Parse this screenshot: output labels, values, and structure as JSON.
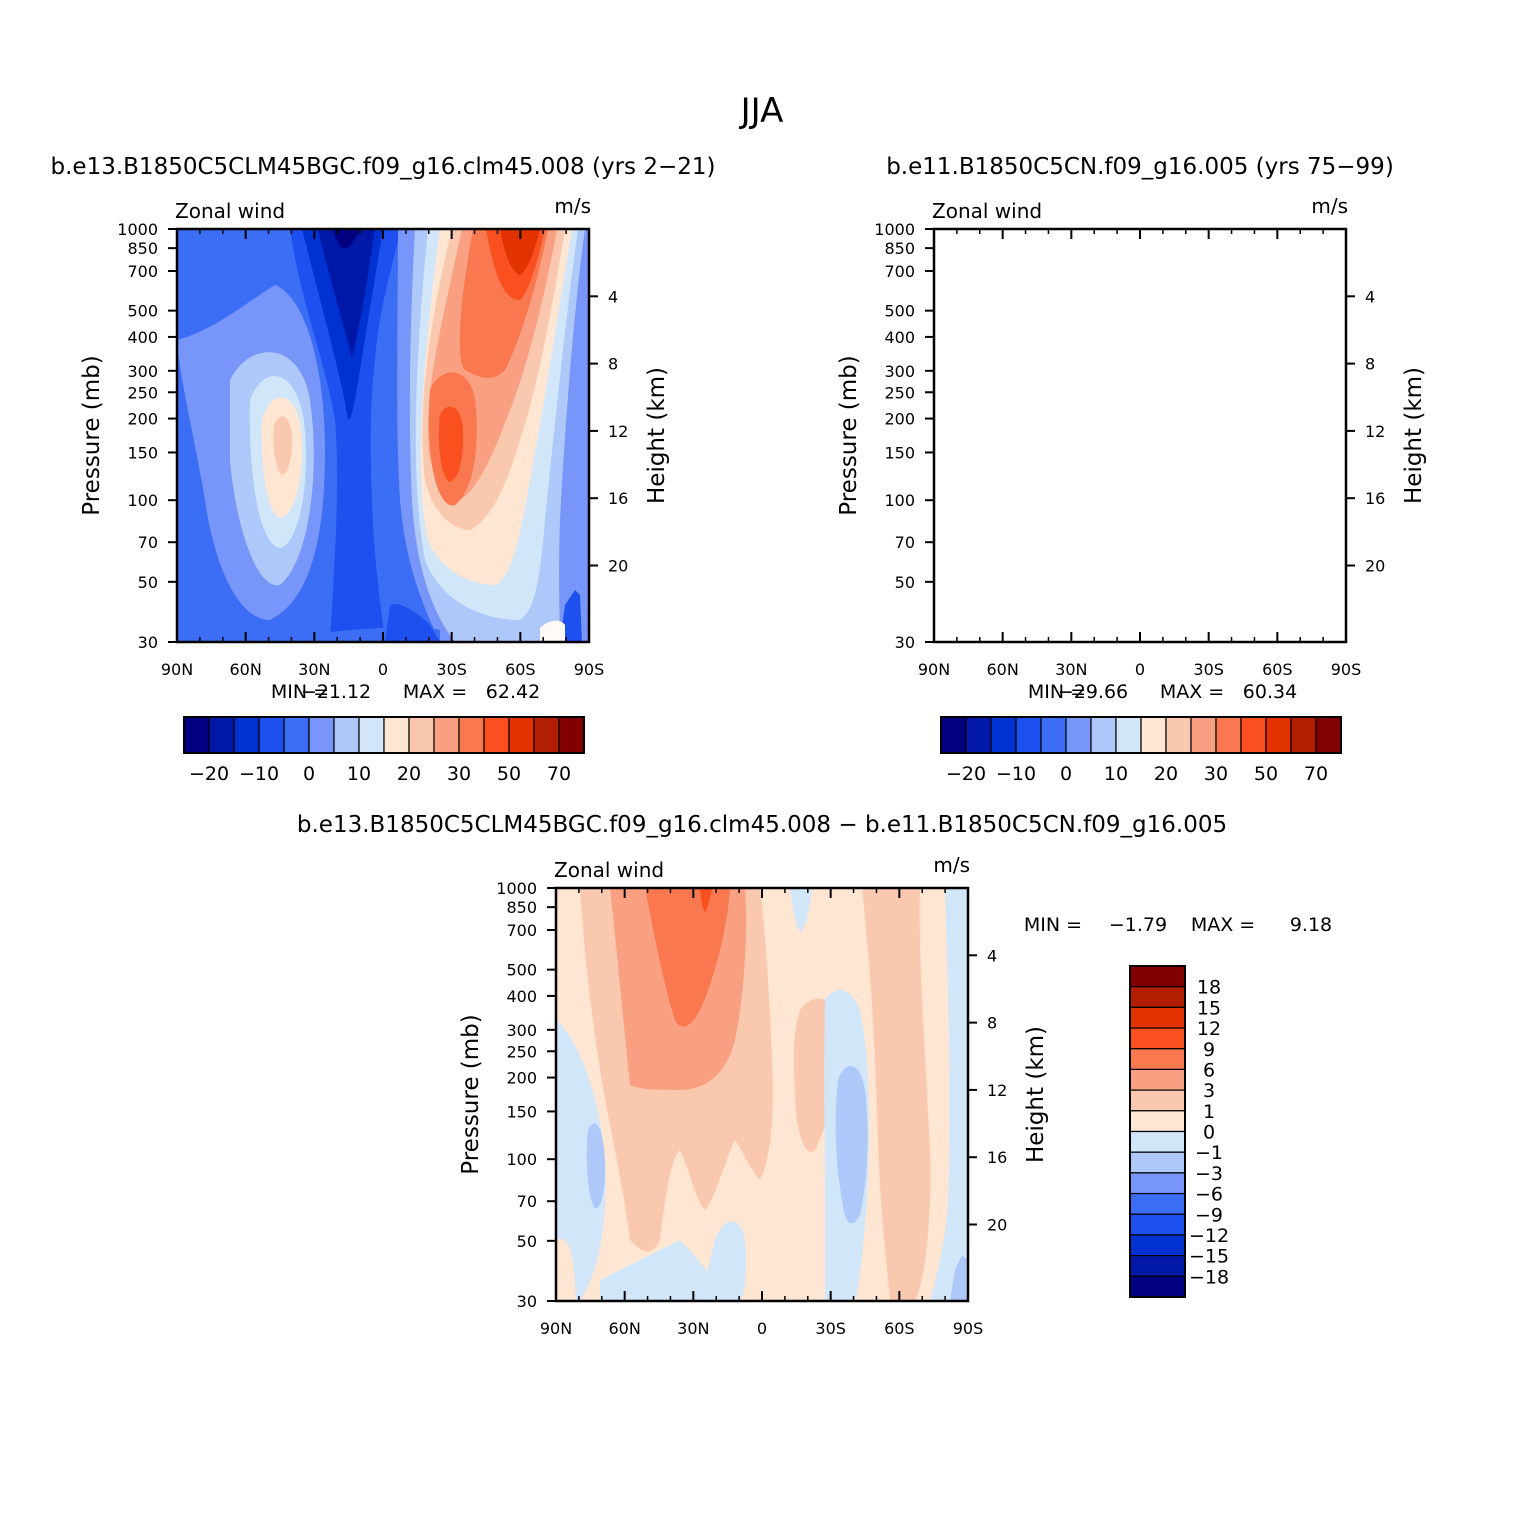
{
  "figure_title": "JJA",
  "colors": {
    "main": [
      "#000080",
      "#0018a8",
      "#0032d2",
      "#1e50f0",
      "#3c6ef5",
      "#7896fa",
      "#afc8fa",
      "#d2e6fa",
      "#ffe6d2",
      "#fac8af",
      "#faa082",
      "#fa7850",
      "#fa5020",
      "#e13200",
      "#b41e00",
      "#820000"
    ],
    "diff": [
      "#000080",
      "#0018a8",
      "#0032d2",
      "#1e50f0",
      "#3c6ef5",
      "#7896fa",
      "#afc8fa",
      "#d2e6fa",
      "#ffe6d2",
      "#fac8af",
      "#faa082",
      "#fa7850",
      "#fa5020",
      "#e13200",
      "#b41e00",
      "#820000"
    ]
  },
  "chart_data": [
    {
      "type": "contour",
      "title": "b.e13.B1850C5CLM45BGC.f09_g16.clm45.008 (yrs 2-21)",
      "title_display": "b.e13.B1850C5CLM45BGC.f09_g16.clm45.008 (yrs 2−21)",
      "left_string": "Zonal wind",
      "right_string": "m/s",
      "xlabel": "",
      "ylabel": "Pressure (mb)",
      "y2label": "Height (km)",
      "xticks": [
        "90N",
        "60N",
        "30N",
        "0",
        "30S",
        "60S",
        "90S"
      ],
      "yticks": [
        30,
        50,
        70,
        100,
        150,
        200,
        250,
        300,
        400,
        500,
        700,
        850,
        1000
      ],
      "y2ticks": [
        20,
        16,
        12,
        8,
        4
      ],
      "min_label": "MIN =",
      "min_value": "−21.12",
      "max_label": "MAX =",
      "max_value": "62.42",
      "min": -21.12,
      "max": 62.42,
      "levels": [
        -25,
        -20,
        -15,
        -10,
        -5,
        0,
        5,
        10,
        15,
        20,
        25,
        30,
        40,
        50,
        60,
        70
      ],
      "colorbar_labels": [
        "−20",
        "−10",
        "0",
        "10",
        "20",
        "30",
        "50",
        "70"
      ]
    },
    {
      "type": "contour",
      "title": "b.e11.B1850C5CN.f09_g16.005 (yrs 75-99)",
      "title_display": "b.e11.B1850C5CN.f09_g16.005 (yrs 75−99)",
      "left_string": "Zonal wind",
      "right_string": "m/s",
      "xlabel": "",
      "ylabel": "Pressure (mb)",
      "y2label": "Height (km)",
      "xticks": [
        "90N",
        "60N",
        "30N",
        "0",
        "30S",
        "60S",
        "90S"
      ],
      "yticks": [
        30,
        50,
        70,
        100,
        150,
        200,
        250,
        300,
        400,
        500,
        700,
        850,
        1000
      ],
      "y2ticks": [
        20,
        16,
        12,
        8,
        4
      ],
      "min_label": "MIN =",
      "min_value": "−29.66",
      "max_label": "MAX =",
      "max_value": "60.34",
      "min": -29.66,
      "max": 60.34,
      "levels": [
        -25,
        -20,
        -15,
        -10,
        -5,
        0,
        5,
        10,
        15,
        20,
        25,
        30,
        40,
        50,
        60,
        70
      ],
      "colorbar_labels": [
        "−20",
        "−10",
        "0",
        "10",
        "20",
        "30",
        "50",
        "70"
      ]
    },
    {
      "type": "contour",
      "title": "b.e13.B1850C5CLM45BGC.f09_g16.clm45.008 - b.e11.B1850C5CN.f09_g16.005",
      "title_display": "b.e13.B1850C5CLM45BGC.f09_g16.clm45.008 − b.e11.B1850C5CN.f09_g16.005",
      "left_string": "Zonal wind",
      "right_string": "m/s",
      "xlabel": "",
      "ylabel": "Pressure (mb)",
      "y2label": "Height (km)",
      "xticks": [
        "90N",
        "60N",
        "30N",
        "0",
        "30S",
        "60S",
        "90S"
      ],
      "yticks": [
        30,
        50,
        70,
        100,
        150,
        200,
        250,
        300,
        400,
        500,
        700,
        850,
        1000
      ],
      "y2ticks": [
        20,
        16,
        12,
        8,
        4
      ],
      "min_label": "MIN =",
      "min_value": "−1.79",
      "max_label": "MAX =",
      "max_value": "9.18",
      "min": -1.79,
      "max": 9.18,
      "levels": [
        -18,
        -15,
        -12,
        -9,
        -6,
        -3,
        -1,
        0,
        1,
        3,
        6,
        9,
        12,
        15,
        18
      ],
      "colorbar_labels": [
        "18",
        "15",
        "12",
        "9",
        "6",
        "3",
        "1",
        "0",
        "−1",
        "−3",
        "−6",
        "−9",
        "−12",
        "−15",
        "−18"
      ]
    }
  ]
}
